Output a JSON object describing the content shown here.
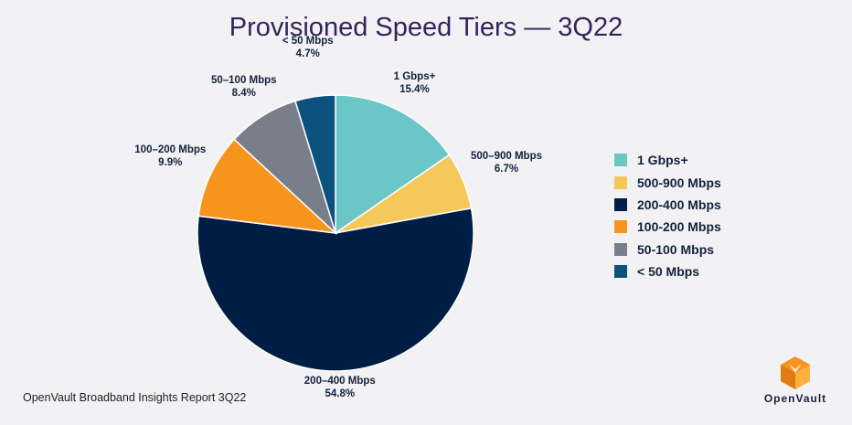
{
  "title": "Provisioned Speed Tiers — 3Q22",
  "footer": "OpenVault Broadband Insights Report 3Q22",
  "logo_text": "OpenVault",
  "chart_data": {
    "type": "pie",
    "title": "Provisioned Speed Tiers — 3Q22",
    "slices": [
      {
        "name": "1 Gbps+",
        "label": "1 Gbps+",
        "value": 15.4,
        "value_label": "15.4%",
        "color": "#6bc6c8"
      },
      {
        "name": "500-900 Mbps",
        "label": "500–900 Mbps",
        "value": 6.7,
        "value_label": "6.7%",
        "color": "#f5c85c"
      },
      {
        "name": "200-400 Mbps",
        "label": "200–400 Mbps",
        "value": 54.8,
        "value_label": "54.8%",
        "color": "#001e45"
      },
      {
        "name": "100-200 Mbps",
        "label": "100–200 Mbps",
        "value": 9.9,
        "value_label": "9.9%",
        "color": "#f7941d"
      },
      {
        "name": "50-100 Mbps",
        "label": "50–100 Mbps",
        "value": 8.4,
        "value_label": "8.4%",
        "color": "#787f8a"
      },
      {
        "name": "< 50 Mbps",
        "label": "< 50 Mbps",
        "value": 4.7,
        "value_label": "4.7%",
        "color": "#0b527f"
      }
    ],
    "legend_position": "right"
  }
}
